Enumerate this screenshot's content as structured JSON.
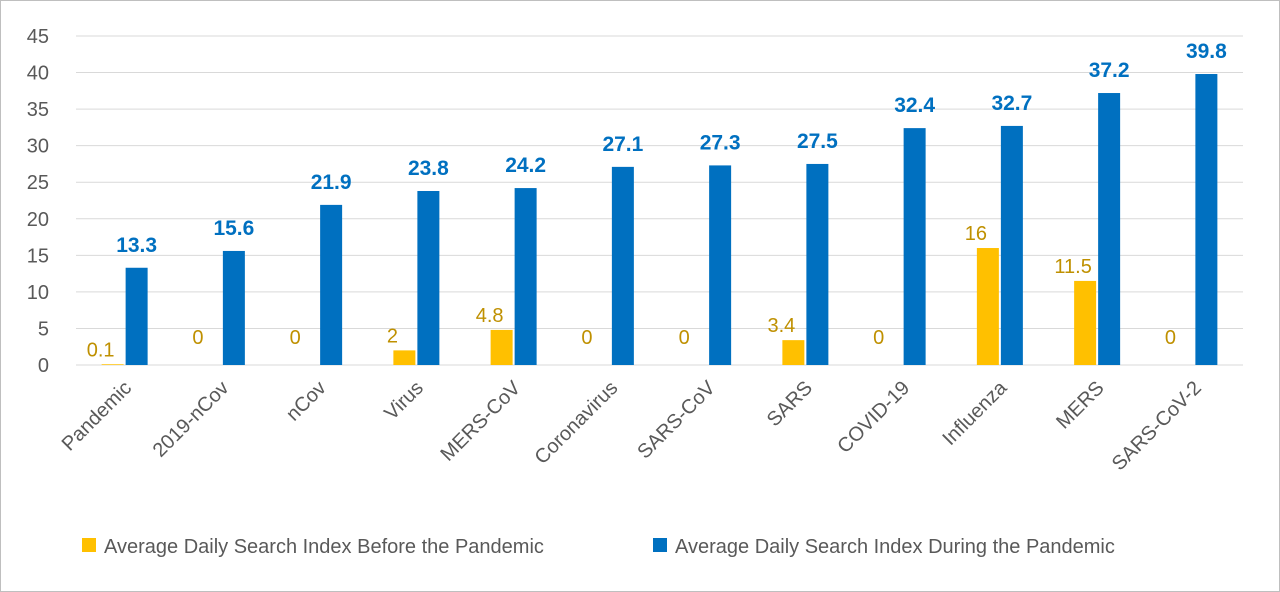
{
  "chart_data": {
    "type": "bar",
    "categories": [
      "Pandemic",
      "2019-nCov",
      "nCov",
      "Virus",
      "MERS-CoV",
      "Coronavirus",
      "SARS-CoV",
      "SARS",
      "COVID-19",
      "Influenza",
      "MERS",
      "SARS-CoV-2"
    ],
    "series": [
      {
        "name": "Average Daily Search Index Before the Pandemic",
        "color": "#ffc000",
        "label_color": "#bf9000",
        "values": [
          0.1,
          0,
          0,
          2,
          4.8,
          0,
          0,
          3.4,
          0,
          16,
          11.5,
          0
        ]
      },
      {
        "name": "Average Daily Search Index During the Pandemic",
        "color": "#0070c0",
        "label_color": "#0070c0",
        "values": [
          13.3,
          15.6,
          21.9,
          23.8,
          24.2,
          27.1,
          27.3,
          27.5,
          32.4,
          32.7,
          37.2,
          39.8
        ]
      }
    ],
    "yticks": [
      "0",
      "5",
      "10",
      "15",
      "20",
      "25",
      "30",
      "35",
      "40",
      "45"
    ],
    "ylim": [
      0,
      45
    ],
    "grid": true,
    "legend_position": "bottom"
  }
}
